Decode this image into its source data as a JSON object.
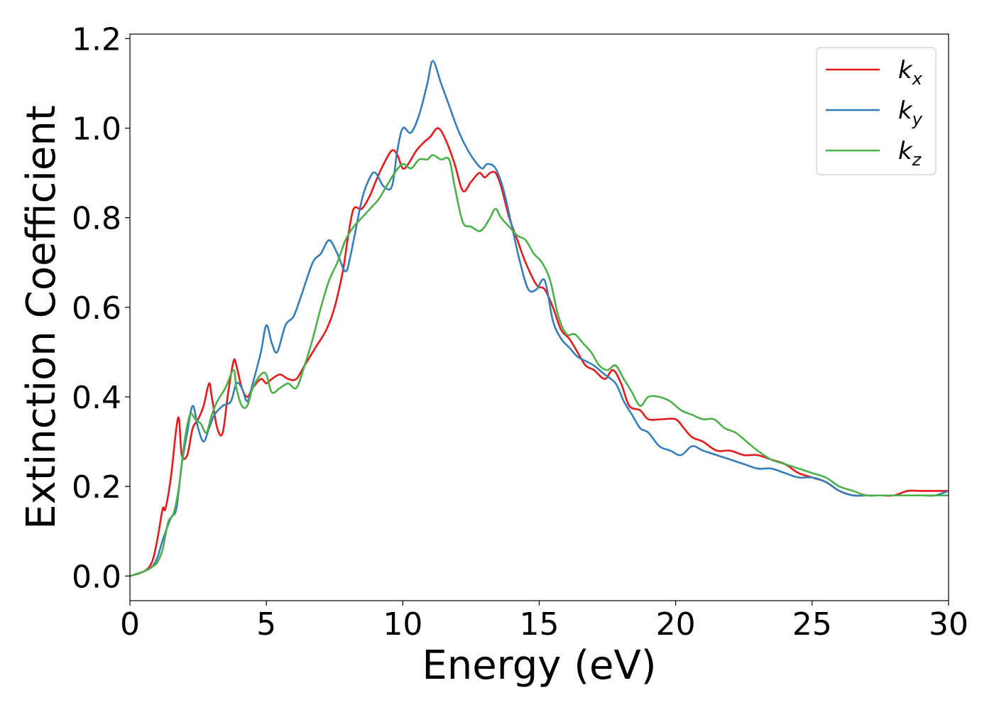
{
  "chart_data": {
    "type": "line",
    "xlabel": "Energy (eV)",
    "ylabel": "Extinction Coefficient",
    "xlim": [
      0,
      30
    ],
    "ylim": [
      -0.055,
      1.21
    ],
    "xticks": [
      0,
      5,
      10,
      15,
      20,
      25,
      30
    ],
    "yticks": [
      0.0,
      0.2,
      0.4,
      0.6,
      0.8,
      1.0,
      1.2
    ],
    "grid": false,
    "legend_position": "top-right",
    "series": [
      {
        "name": "k_x",
        "legend_base": "k",
        "legend_sub": "x",
        "color": "#e41a1c",
        "x": [
          0,
          0.5,
          0.8,
          1.0,
          1.2,
          1.3,
          1.5,
          1.7,
          1.8,
          1.9,
          2.1,
          2.3,
          2.5,
          2.7,
          2.9,
          3.0,
          3.2,
          3.4,
          3.6,
          3.8,
          3.9,
          4.1,
          4.3,
          4.5,
          4.8,
          5.0,
          5.2,
          5.5,
          5.8,
          6.1,
          6.4,
          6.8,
          7.2,
          7.5,
          7.8,
          8.0,
          8.2,
          8.5,
          8.8,
          9.0,
          9.3,
          9.6,
          9.8,
          10.0,
          10.2,
          10.5,
          10.8,
          11.0,
          11.3,
          11.6,
          11.9,
          12.2,
          12.5,
          12.8,
          13.0,
          13.2,
          13.4,
          13.6,
          13.9,
          14.2,
          14.5,
          14.9,
          15.2,
          15.5,
          15.8,
          16.1,
          16.4,
          16.7,
          17.0,
          17.4,
          17.7,
          18.0,
          18.3,
          18.7,
          19.0,
          19.5,
          20.0,
          20.3,
          20.6,
          21.0,
          21.5,
          22.0,
          22.5,
          23.0,
          23.5,
          24.0,
          24.5,
          25.0,
          25.5,
          26.0,
          26.5,
          27.0,
          27.5,
          28.0,
          28.5,
          29.0,
          29.5,
          30.0
        ],
        "y": [
          0.0,
          0.01,
          0.03,
          0.08,
          0.15,
          0.15,
          0.22,
          0.33,
          0.35,
          0.27,
          0.27,
          0.33,
          0.35,
          0.38,
          0.43,
          0.4,
          0.33,
          0.32,
          0.41,
          0.48,
          0.47,
          0.42,
          0.4,
          0.42,
          0.44,
          0.43,
          0.44,
          0.45,
          0.44,
          0.44,
          0.47,
          0.51,
          0.55,
          0.6,
          0.68,
          0.76,
          0.82,
          0.82,
          0.85,
          0.88,
          0.92,
          0.95,
          0.94,
          0.91,
          0.92,
          0.95,
          0.97,
          0.98,
          1.0,
          0.97,
          0.92,
          0.86,
          0.88,
          0.9,
          0.89,
          0.9,
          0.9,
          0.87,
          0.8,
          0.75,
          0.7,
          0.65,
          0.64,
          0.6,
          0.55,
          0.53,
          0.5,
          0.47,
          0.46,
          0.44,
          0.46,
          0.43,
          0.38,
          0.37,
          0.35,
          0.35,
          0.35,
          0.33,
          0.31,
          0.3,
          0.28,
          0.28,
          0.27,
          0.27,
          0.26,
          0.25,
          0.23,
          0.22,
          0.21,
          0.19,
          0.18,
          0.18,
          0.18,
          0.18,
          0.19,
          0.19,
          0.19,
          0.19
        ]
      },
      {
        "name": "k_y",
        "legend_base": "k",
        "legend_sub": "y",
        "color": "#377eb8",
        "x": [
          0,
          0.5,
          0.8,
          1.0,
          1.2,
          1.5,
          1.7,
          1.9,
          2.1,
          2.3,
          2.5,
          2.7,
          2.9,
          3.1,
          3.4,
          3.7,
          3.9,
          4.1,
          4.3,
          4.5,
          4.8,
          5.0,
          5.2,
          5.4,
          5.7,
          6.0,
          6.3,
          6.7,
          7.0,
          7.3,
          7.6,
          7.9,
          8.1,
          8.5,
          8.8,
          9.0,
          9.3,
          9.6,
          9.8,
          10.0,
          10.3,
          10.6,
          10.9,
          11.1,
          11.4,
          11.7,
          12.0,
          12.3,
          12.6,
          12.9,
          13.1,
          13.4,
          13.7,
          14.0,
          14.3,
          14.6,
          14.9,
          15.2,
          15.5,
          15.8,
          16.1,
          16.4,
          16.7,
          17.0,
          17.4,
          17.8,
          18.1,
          18.4,
          18.7,
          19.0,
          19.4,
          19.8,
          20.2,
          20.6,
          21.0,
          21.5,
          22.0,
          22.5,
          23.0,
          23.5,
          24.0,
          24.5,
          25.0,
          25.5,
          26.0,
          26.5,
          27.0,
          27.5,
          28.0,
          28.5,
          29.0,
          29.5,
          30.0
        ],
        "y": [
          0.0,
          0.01,
          0.02,
          0.04,
          0.08,
          0.13,
          0.15,
          0.25,
          0.32,
          0.38,
          0.33,
          0.3,
          0.33,
          0.36,
          0.38,
          0.39,
          0.43,
          0.42,
          0.39,
          0.43,
          0.5,
          0.56,
          0.52,
          0.5,
          0.56,
          0.58,
          0.63,
          0.7,
          0.72,
          0.75,
          0.72,
          0.68,
          0.72,
          0.84,
          0.89,
          0.9,
          0.87,
          0.87,
          0.95,
          1.0,
          0.99,
          1.03,
          1.1,
          1.15,
          1.1,
          1.05,
          1.0,
          0.96,
          0.93,
          0.91,
          0.92,
          0.91,
          0.86,
          0.78,
          0.7,
          0.64,
          0.64,
          0.66,
          0.57,
          0.53,
          0.51,
          0.49,
          0.48,
          0.47,
          0.45,
          0.43,
          0.39,
          0.36,
          0.33,
          0.32,
          0.29,
          0.28,
          0.27,
          0.29,
          0.28,
          0.27,
          0.26,
          0.25,
          0.24,
          0.24,
          0.23,
          0.22,
          0.22,
          0.21,
          0.19,
          0.18,
          0.18,
          0.18,
          0.18,
          0.18,
          0.18,
          0.18,
          0.19
        ]
      },
      {
        "name": "k_z",
        "legend_base": "k",
        "legend_sub": "z",
        "color": "#4daf4a",
        "x": [
          0,
          0.5,
          0.8,
          1.0,
          1.2,
          1.4,
          1.6,
          1.8,
          2.0,
          2.2,
          2.4,
          2.6,
          2.8,
          3.0,
          3.2,
          3.5,
          3.8,
          3.9,
          4.1,
          4.3,
          4.5,
          4.8,
          5.0,
          5.2,
          5.5,
          5.8,
          6.1,
          6.4,
          6.7,
          7.0,
          7.3,
          7.6,
          7.9,
          8.2,
          8.5,
          8.8,
          9.1,
          9.4,
          9.7,
          10.0,
          10.3,
          10.6,
          10.9,
          11.1,
          11.4,
          11.7,
          11.9,
          12.2,
          12.5,
          12.8,
          13.0,
          13.2,
          13.4,
          13.6,
          13.9,
          14.2,
          14.5,
          14.8,
          15.1,
          15.4,
          15.7,
          16.0,
          16.3,
          16.6,
          16.9,
          17.2,
          17.5,
          17.8,
          18.1,
          18.4,
          18.7,
          19.0,
          19.4,
          19.8,
          20.2,
          20.6,
          21.0,
          21.4,
          21.8,
          22.2,
          22.6,
          23.0,
          23.5,
          24.0,
          24.5,
          25.0,
          25.5,
          26.0,
          26.5,
          27.0,
          27.5,
          28.0,
          28.5,
          29.0,
          29.5,
          30.0
        ],
        "y": [
          0.0,
          0.01,
          0.02,
          0.03,
          0.06,
          0.12,
          0.14,
          0.2,
          0.3,
          0.36,
          0.35,
          0.34,
          0.32,
          0.36,
          0.39,
          0.42,
          0.46,
          0.42,
          0.38,
          0.38,
          0.42,
          0.45,
          0.45,
          0.41,
          0.42,
          0.43,
          0.42,
          0.47,
          0.53,
          0.6,
          0.66,
          0.7,
          0.75,
          0.78,
          0.8,
          0.82,
          0.84,
          0.87,
          0.9,
          0.92,
          0.91,
          0.93,
          0.93,
          0.94,
          0.93,
          0.93,
          0.87,
          0.79,
          0.78,
          0.77,
          0.78,
          0.8,
          0.82,
          0.8,
          0.78,
          0.76,
          0.75,
          0.72,
          0.7,
          0.66,
          0.58,
          0.54,
          0.54,
          0.52,
          0.5,
          0.47,
          0.46,
          0.47,
          0.44,
          0.41,
          0.38,
          0.4,
          0.4,
          0.39,
          0.37,
          0.36,
          0.35,
          0.35,
          0.33,
          0.32,
          0.3,
          0.28,
          0.26,
          0.25,
          0.24,
          0.23,
          0.22,
          0.2,
          0.19,
          0.18,
          0.18,
          0.18,
          0.18,
          0.18,
          0.18,
          0.18
        ]
      }
    ]
  }
}
